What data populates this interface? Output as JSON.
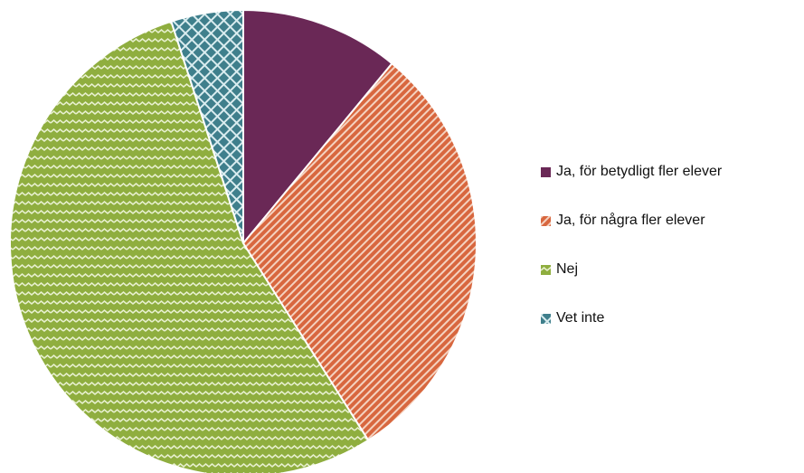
{
  "chart_data": {
    "type": "pie",
    "title": "",
    "slices": [
      {
        "label": "Ja, för betydligt fler elever",
        "value": 11,
        "color": "#6a2856",
        "pattern": "solid"
      },
      {
        "label": "Ja, för några fler elever",
        "value": 30,
        "color": "#c8562f",
        "pattern": "diagonal-stripes"
      },
      {
        "label": "Nej",
        "value": 54,
        "color": "#8fae3f",
        "pattern": "zigzag"
      },
      {
        "label": "Vet inte",
        "value": 5,
        "color": "#4a8a96",
        "pattern": "crosshatch"
      }
    ],
    "legend_position": "right",
    "start": "top",
    "direction": "clockwise"
  }
}
